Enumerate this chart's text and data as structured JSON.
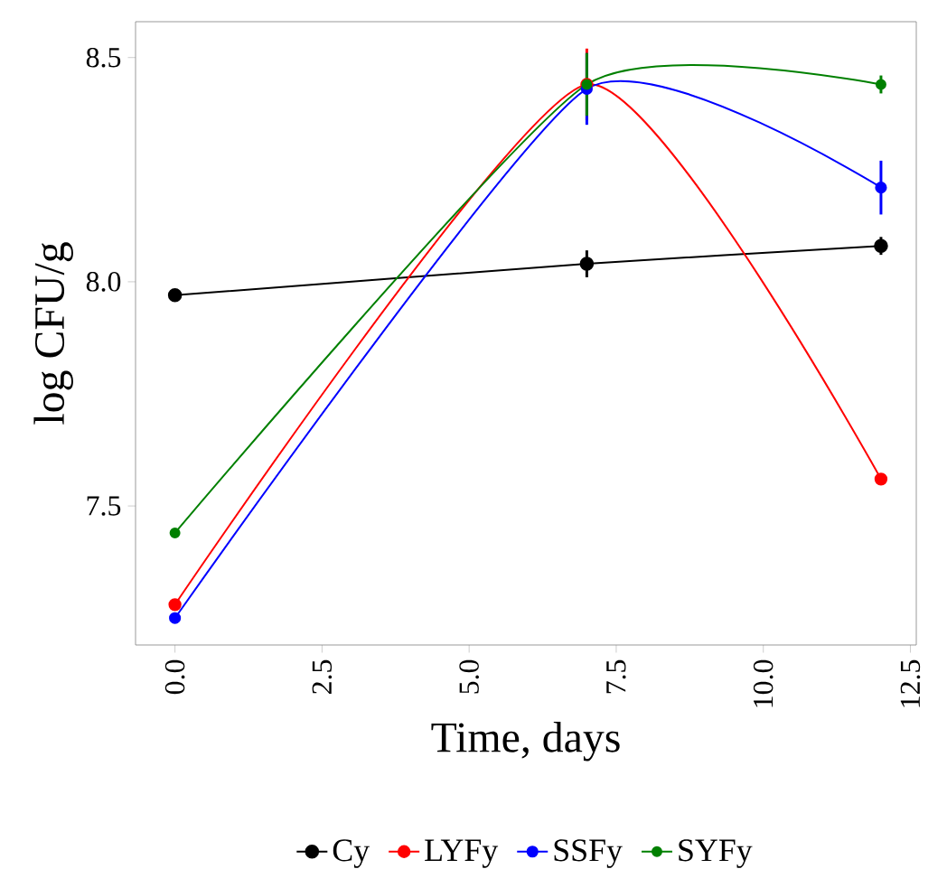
{
  "chart_data": {
    "type": "line",
    "xlabel": "Time, days",
    "ylabel": "log CFU/g",
    "x": [
      0,
      7,
      12
    ],
    "series": [
      {
        "name": "Cy",
        "color": "#000000",
        "values": [
          7.97,
          8.04,
          8.08
        ],
        "errors": [
          null,
          0.03,
          0.02
        ]
      },
      {
        "name": "LYFy",
        "color": "#ff0000",
        "values": [
          7.28,
          8.44,
          7.56
        ],
        "errors": [
          null,
          0.08,
          null
        ]
      },
      {
        "name": "SSFy",
        "color": "#0000ff",
        "values": [
          7.25,
          8.43,
          8.21
        ],
        "errors": [
          null,
          0.08,
          0.06
        ]
      },
      {
        "name": "SYFy",
        "color": "#008000",
        "values": [
          7.44,
          8.44,
          8.44
        ],
        "errors": [
          null,
          0.07,
          0.02
        ]
      }
    ],
    "xlim": [
      -0.67,
      12.6
    ],
    "ylim": [
      7.19,
      8.58
    ],
    "xticks": [
      {
        "value": 0,
        "label": "0.0"
      },
      2.5,
      {
        "value": 5,
        "label": "5.0"
      },
      7.5,
      {
        "value": 10,
        "label": "10.0"
      },
      12.5
    ],
    "yticks": [
      7.5,
      {
        "value": 8,
        "label": "8.0"
      },
      8.5
    ],
    "grid": false,
    "legend": "bottom",
    "marker": "circle",
    "line_style": "solid"
  }
}
